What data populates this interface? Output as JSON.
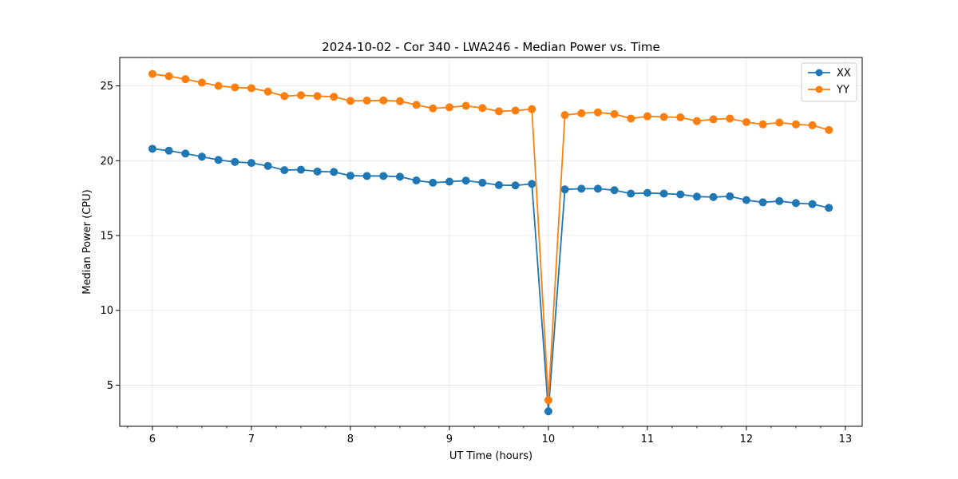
{
  "chart_data": {
    "type": "line",
    "title": "2024-10-02 - Cor 340 - LWA246 - Median Power vs. Time",
    "xlabel": "UT Time (hours)",
    "ylabel": "Median Power (CPU)",
    "xlim": [
      5.67,
      13.17
    ],
    "ylim": [
      2.25,
      26.9
    ],
    "x_ticks": [
      6,
      7,
      8,
      9,
      10,
      11,
      12,
      13
    ],
    "y_ticks": [
      5,
      10,
      15,
      20,
      25
    ],
    "grid": true,
    "legend_position": "top-right",
    "x": [
      6.0,
      6.1667,
      6.3333,
      6.5,
      6.6667,
      6.8333,
      7.0,
      7.1667,
      7.3333,
      7.5,
      7.6667,
      7.8333,
      8.0,
      8.1667,
      8.3333,
      8.5,
      8.6667,
      8.8333,
      9.0,
      9.1667,
      9.3333,
      9.5,
      9.6667,
      9.8333,
      10.0,
      10.1667,
      10.3333,
      10.5,
      10.6667,
      10.8333,
      11.0,
      11.1667,
      11.3333,
      11.5,
      11.6667,
      11.8333,
      12.0,
      12.1667,
      12.3333,
      12.5,
      12.6667,
      12.8333
    ],
    "series": [
      {
        "name": "XX",
        "color": "#1f77b4",
        "values": [
          20.8,
          20.67,
          20.48,
          20.27,
          20.05,
          19.92,
          19.85,
          19.65,
          19.37,
          19.4,
          19.28,
          19.25,
          19.0,
          18.98,
          18.98,
          18.93,
          18.68,
          18.53,
          18.6,
          18.67,
          18.53,
          18.37,
          18.35,
          18.45,
          3.25,
          18.08,
          18.13,
          18.13,
          18.03,
          17.8,
          17.85,
          17.8,
          17.75,
          17.6,
          17.57,
          17.62,
          17.37,
          17.22,
          17.3,
          17.17,
          17.1,
          16.85
        ]
      },
      {
        "name": "YY",
        "color": "#ff7f0e",
        "values": [
          25.8,
          25.65,
          25.45,
          25.22,
          25.0,
          24.9,
          24.85,
          24.62,
          24.32,
          24.38,
          24.32,
          24.27,
          24.0,
          24.02,
          24.03,
          23.98,
          23.73,
          23.5,
          23.57,
          23.67,
          23.52,
          23.3,
          23.35,
          23.45,
          4.0,
          23.05,
          23.17,
          23.23,
          23.12,
          22.82,
          22.97,
          22.93,
          22.9,
          22.65,
          22.77,
          22.82,
          22.58,
          22.43,
          22.55,
          22.43,
          22.37,
          22.05
        ]
      }
    ]
  }
}
